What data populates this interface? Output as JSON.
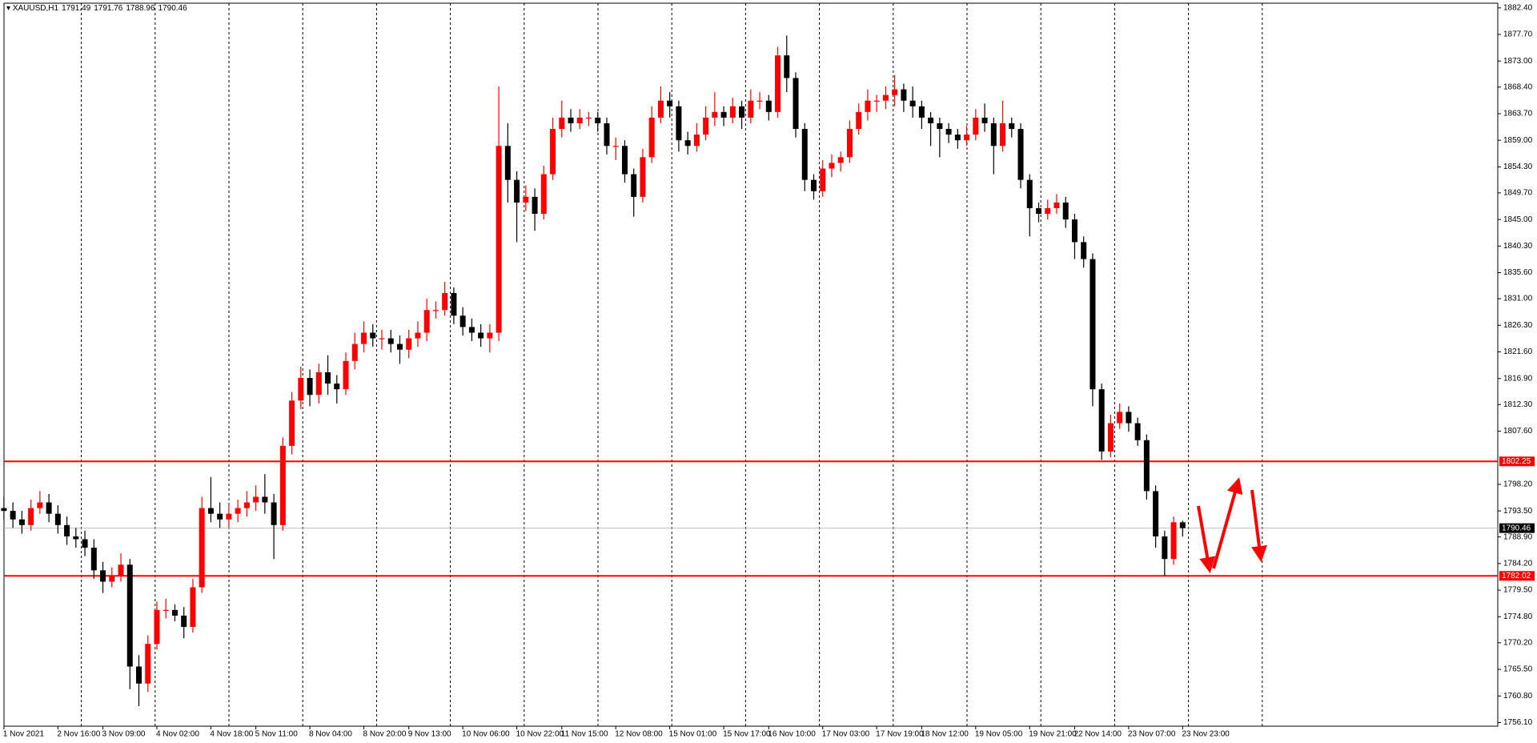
{
  "chart_data": {
    "type": "candlestick",
    "title": "XAUUSD,H1",
    "up_color": "#ff0000",
    "down_color": "#000000",
    "grid": true,
    "categories": [
      "1 Nov 2021",
      null,
      null,
      null,
      null,
      null,
      "2 Nov 16:00",
      null,
      null,
      null,
      null,
      "3 Nov 09:00",
      null,
      null,
      null,
      null,
      null,
      "4 Nov 02:00",
      null,
      null,
      null,
      null,
      null,
      "4 Nov 18:00",
      null,
      null,
      null,
      null,
      "5 Nov 11:00",
      null,
      null,
      null,
      null,
      null,
      "8 Nov 04:00",
      null,
      null,
      null,
      null,
      null,
      "8 Nov 20:00",
      null,
      null,
      null,
      null,
      "9 Nov 13:00",
      null,
      null,
      null,
      null,
      null,
      "10 Nov 06:00",
      null,
      null,
      null,
      null,
      null,
      "10 Nov 22:00",
      null,
      null,
      null,
      null,
      "11 Nov 15:00",
      null,
      null,
      null,
      null,
      null,
      "12 Nov 08:00",
      null,
      null,
      null,
      null,
      null,
      "15 Nov 01:00",
      null,
      null,
      null,
      null,
      null,
      "15 Nov 17:00",
      null,
      null,
      null,
      null,
      "16 Nov 10:00",
      null,
      null,
      null,
      null,
      null,
      "17 Nov 03:00",
      null,
      null,
      null,
      null,
      null,
      "17 Nov 19:00",
      null,
      null,
      null,
      null,
      "18 Nov 12:00",
      null,
      null,
      null,
      null,
      null,
      "19 Nov 05:00",
      null,
      null,
      null,
      null,
      null,
      "19 Nov 21:00",
      null,
      null,
      null,
      null,
      "22 Nov 14:00",
      null,
      null,
      null,
      null,
      null,
      "23 Nov 07:00",
      null,
      null,
      null,
      null,
      null,
      "23 Nov 23:00"
    ],
    "open": [
      1794,
      1793.5,
      1792,
      1791,
      1794,
      1795,
      1793,
      1791,
      1789,
      1788.5,
      1787,
      1783,
      1781,
      1782,
      1784,
      1766,
      1763,
      1770,
      1776,
      1776,
      1775,
      1773,
      1780,
      1794,
      1793,
      1792,
      1793,
      1794,
      1795,
      1796,
      1795,
      1791,
      1805,
      1813,
      1817,
      1814,
      1818,
      1816,
      1815,
      1820,
      1823,
      1825,
      1824,
      1824,
      1823,
      1822,
      1824,
      1825,
      1829,
      1829,
      1832,
      1828,
      1826,
      1825,
      1824,
      1825,
      1858,
      1852,
      1848,
      1849,
      1846,
      1853,
      1861,
      1863,
      1862,
      1863,
      1863,
      1862,
      1858,
      1858,
      1853,
      1849,
      1856,
      1863,
      1866,
      1865,
      1859,
      1858,
      1860,
      1863,
      1864,
      1863,
      1865,
      1863,
      1866,
      1866,
      1864,
      1874,
      1870,
      1861,
      1852,
      1850,
      1854,
      1855,
      1856,
      1861,
      1864,
      1866,
      1866,
      1867,
      1868,
      1866,
      1865,
      1863,
      1862,
      1861,
      1860,
      1859,
      1860,
      1863,
      1862,
      1858,
      1862,
      1861,
      1852,
      1847,
      1846,
      1847,
      1848,
      1845,
      1841,
      1838,
      1815,
      1804,
      1809,
      1811,
      1809,
      1806,
      1797,
      1789,
      1785,
      1791.49
    ],
    "high": [
      1796,
      1795,
      1793.5,
      1795.5,
      1797,
      1796.5,
      1794.5,
      1792.5,
      1790.5,
      1790,
      1788.5,
      1784.5,
      1783.5,
      1786,
      1785,
      1768,
      1771.5,
      1777.5,
      1778,
      1777,
      1776.5,
      1781.5,
      1796,
      1799.5,
      1795,
      1794.5,
      1795.5,
      1797,
      1798,
      1800,
      1796.5,
      1806.5,
      1814.5,
      1819,
      1818.5,
      1819.5,
      1821,
      1817.5,
      1821.5,
      1825,
      1827,
      1826.5,
      1825.5,
      1825.5,
      1824.5,
      1825.5,
      1827,
      1831,
      1830.5,
      1834,
      1833,
      1829.5,
      1827.5,
      1826.5,
      1826.5,
      1868.5,
      1862,
      1853.5,
      1851,
      1850.5,
      1854.5,
      1863,
      1866,
      1864.5,
      1864.5,
      1864,
      1864,
      1863,
      1859.5,
      1859,
      1854,
      1857.5,
      1865,
      1868.5,
      1867.5,
      1866,
      1860.5,
      1862,
      1865,
      1867.5,
      1865,
      1866.5,
      1866,
      1868,
      1867.5,
      1867,
      1875.5,
      1877.5,
      1871,
      1862,
      1853,
      1855.5,
      1856.5,
      1857,
      1862.5,
      1865.5,
      1868,
      1867,
      1868.5,
      1870.5,
      1869,
      1868.5,
      1866,
      1864,
      1863,
      1862,
      1861,
      1861.5,
      1864.5,
      1865.5,
      1863,
      1866,
      1863,
      1862,
      1853,
      1848,
      1848.5,
      1849.5,
      1849,
      1846,
      1842,
      1839,
      1816,
      1810.5,
      1812.5,
      1812,
      1810,
      1807,
      1798,
      1790,
      1792.5,
      1791.76
    ],
    "low": [
      1792,
      1790.5,
      1789.5,
      1790,
      1793,
      1791.5,
      1789.5,
      1787.5,
      1787,
      1785.5,
      1781.5,
      1779,
      1780,
      1781,
      1762,
      1759,
      1761.5,
      1769,
      1774.5,
      1774,
      1771,
      1772,
      1779,
      1791.5,
      1790.5,
      1790.5,
      1791.5,
      1792.5,
      1793.5,
      1793,
      1785,
      1790,
      1803.5,
      1811.5,
      1812,
      1812.5,
      1814,
      1812.5,
      1814,
      1818.5,
      1821.5,
      1822.5,
      1822,
      1821.5,
      1819.5,
      1820.5,
      1822.5,
      1823.5,
      1827.5,
      1828,
      1826.5,
      1824.5,
      1823.5,
      1822.5,
      1821.5,
      1823.5,
      1848,
      1841,
      1846.5,
      1843,
      1845,
      1852,
      1859.5,
      1860.5,
      1861,
      1861.5,
      1860.5,
      1856.5,
      1855.5,
      1851.5,
      1845.5,
      1848,
      1855,
      1862,
      1863,
      1857,
      1856.5,
      1857,
      1859,
      1861.5,
      1861.5,
      1862,
      1861,
      1862,
      1864.5,
      1862.5,
      1863,
      1867.5,
      1859.5,
      1850,
      1848.5,
      1849,
      1852.5,
      1853.5,
      1855,
      1860,
      1862.5,
      1864,
      1864.5,
      1865,
      1864,
      1863,
      1861,
      1858,
      1856,
      1858.5,
      1857.5,
      1858,
      1859,
      1860.5,
      1853,
      1857,
      1859.5,
      1850.5,
      1842,
      1844.5,
      1845,
      1846,
      1843.5,
      1838,
      1836.5,
      1812,
      1802.5,
      1803,
      1808,
      1807.5,
      1805,
      1795.5,
      1787,
      1782,
      1784,
      1788.96
    ],
    "close": [
      1793.5,
      1792,
      1791,
      1794,
      1795,
      1793,
      1791,
      1789,
      1788.5,
      1787,
      1783,
      1781,
      1782,
      1784,
      1766,
      1763,
      1770,
      1776,
      1776,
      1775,
      1773,
      1780,
      1794,
      1793,
      1792,
      1793,
      1794,
      1795,
      1796,
      1795,
      1791,
      1805,
      1813,
      1817,
      1814,
      1818,
      1816,
      1815,
      1820,
      1823,
      1825,
      1824,
      1824,
      1823,
      1822,
      1824,
      1825,
      1829,
      1829,
      1832,
      1828,
      1826,
      1825,
      1824,
      1825,
      1858,
      1852,
      1848,
      1849,
      1846,
      1853,
      1861,
      1863,
      1862,
      1863,
      1863,
      1862,
      1858,
      1858,
      1853,
      1849,
      1856,
      1863,
      1866,
      1865,
      1859,
      1858,
      1860,
      1863,
      1864,
      1863,
      1865,
      1863,
      1866,
      1866,
      1864,
      1874,
      1870,
      1861,
      1852,
      1850,
      1854,
      1855,
      1856,
      1861,
      1864,
      1866,
      1866,
      1867,
      1868,
      1866,
      1865,
      1863,
      1862,
      1861,
      1860,
      1859,
      1860,
      1863,
      1862,
      1858,
      1862,
      1861,
      1852,
      1847,
      1846,
      1847,
      1848,
      1845,
      1841,
      1838,
      1815,
      1804,
      1809,
      1811,
      1809,
      1806,
      1797,
      1789,
      1785,
      1791.49,
      1790.46
    ],
    "ylim": [
      1755.46,
      1883.22
    ],
    "yticks": [
      {
        "value": 1882.4,
        "label": "1882.40"
      },
      {
        "value": 1877.7,
        "label": "1877.70"
      },
      {
        "value": 1873,
        "label": "1873.00"
      },
      {
        "value": 1868.4,
        "label": "1868.40"
      },
      {
        "value": 1863.7,
        "label": "1863.70"
      },
      {
        "value": 1859,
        "label": "1859.00"
      },
      {
        "value": 1854.3,
        "label": "1854.30"
      },
      {
        "value": 1849.7,
        "label": "1849.70"
      },
      {
        "value": 1845,
        "label": "1845.00"
      },
      {
        "value": 1840.3,
        "label": "1840.30"
      },
      {
        "value": 1835.6,
        "label": "1835.60"
      },
      {
        "value": 1831,
        "label": "1831.00"
      },
      {
        "value": 1826.3,
        "label": "1826.30"
      },
      {
        "value": 1821.6,
        "label": "1821.60"
      },
      {
        "value": 1816.9,
        "label": "1816.90"
      },
      {
        "value": 1812.3,
        "label": "1812.30"
      },
      {
        "value": 1807.6,
        "label": "1807.60"
      },
      {
        "value": 1798.2,
        "label": "1798.20"
      },
      {
        "value": 1793.5,
        "label": "1793.50"
      },
      {
        "value": 1788.9,
        "label": "1788.90"
      },
      {
        "value": 1784.2,
        "label": "1784.20"
      },
      {
        "value": 1779.5,
        "label": "1779.50"
      },
      {
        "value": 1774.8,
        "label": "1774.80"
      },
      {
        "value": 1770.2,
        "label": "1770.20"
      },
      {
        "value": 1765.5,
        "label": "1765.50"
      },
      {
        "value": 1760.8,
        "label": "1760.80"
      },
      {
        "value": 1756.1,
        "label": "1756.10"
      }
    ],
    "hlines": [
      1802.25,
      1782.02
    ],
    "hline_color": "#ff0000",
    "price_line_color": "#c0c0c0"
  }
}
